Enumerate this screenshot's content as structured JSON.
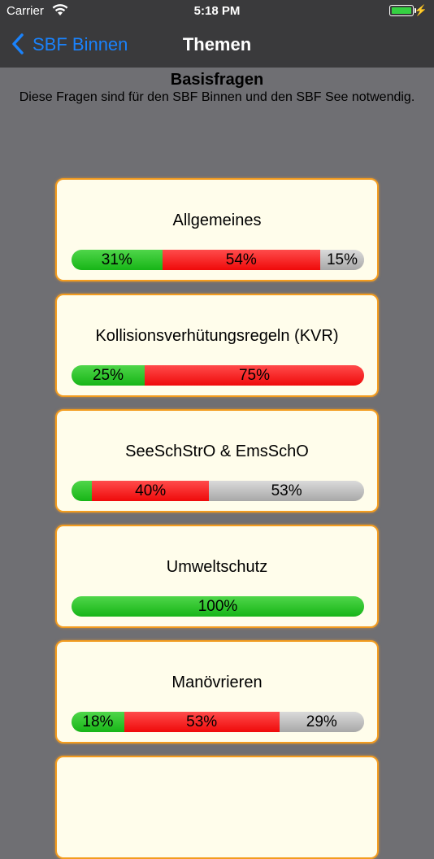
{
  "status_bar": {
    "carrier": "Carrier",
    "time": "5:18 PM",
    "battery_level": 1.0,
    "battery_color": "#35d142"
  },
  "nav": {
    "back_label": "SBF Binnen",
    "title": "Themen",
    "accent": "#1a82fb"
  },
  "header": {
    "title": "Basisfragen",
    "description": "Diese Fragen sind für den SBF Binnen und den SBF See notwendig."
  },
  "colors": {
    "correct": "#17b517",
    "wrong": "#ef0a0a",
    "open": "#a8a8a8",
    "card_border": "#f39c1f",
    "card_bg": "#fffdeb"
  },
  "topics": [
    {
      "title": "Allgemeines",
      "correct": 31,
      "wrong": 54,
      "open": 15,
      "labels": {
        "correct": "31%",
        "wrong": "54%",
        "open": "15%"
      }
    },
    {
      "title": "Kollisionsverhütungsregeln (KVR)",
      "correct": 25,
      "wrong": 75,
      "open": 0,
      "labels": {
        "correct": "25%",
        "wrong": "75%",
        "open": ""
      }
    },
    {
      "title": "SeeSchStrO & EmsSchO",
      "correct": 7,
      "wrong": 40,
      "open": 53,
      "labels": {
        "correct": "",
        "wrong": "40%",
        "open": "53%"
      }
    },
    {
      "title": "Umweltschutz",
      "correct": 100,
      "wrong": 0,
      "open": 0,
      "labels": {
        "correct": "100%",
        "wrong": "",
        "open": ""
      }
    },
    {
      "title": "Manövrieren",
      "correct": 18,
      "wrong": 53,
      "open": 29,
      "labels": {
        "correct": "18%",
        "wrong": "53%",
        "open": "29%"
      }
    },
    {
      "title": "",
      "correct": 0,
      "wrong": 0,
      "open": 0,
      "labels": {
        "correct": "",
        "wrong": "",
        "open": ""
      }
    }
  ]
}
